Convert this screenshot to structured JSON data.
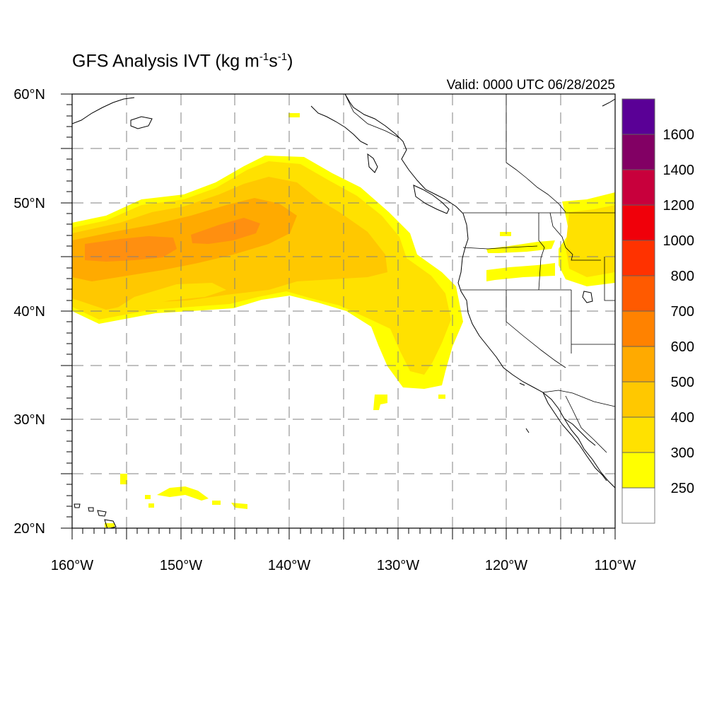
{
  "map": {
    "title_main": "GFS Analysis IVT (kg m",
    "title_exp1": "-1",
    "title_mid": "s",
    "title_exp2": "-1",
    "title_end": ")",
    "valid": "Valid: 0000 UTC 06/28/2025",
    "lat_labels": [
      {
        "text": "60°N",
        "value": 60
      },
      {
        "text": "50°N",
        "value": 50
      },
      {
        "text": "40°N",
        "value": 40
      },
      {
        "text": "30°N",
        "value": 30
      },
      {
        "text": "20°N",
        "value": 20
      }
    ],
    "lon_labels": [
      {
        "text": "160°W",
        "value": -160
      },
      {
        "text": "150°W",
        "value": -150
      },
      {
        "text": "140°W",
        "value": -140
      },
      {
        "text": "130°W",
        "value": -130
      },
      {
        "text": "120°W",
        "value": -120
      },
      {
        "text": "110°W",
        "value": -110
      }
    ],
    "colorbar": {
      "levels": [
        {
          "label": "250",
          "color": "#ffff00"
        },
        {
          "label": "300",
          "color": "#ffe100"
        },
        {
          "label": "400",
          "color": "#ffc800"
        },
        {
          "label": "500",
          "color": "#ffaa00"
        },
        {
          "label": "600",
          "color": "#ff8200"
        },
        {
          "label": "700",
          "color": "#ff5a00"
        },
        {
          "label": "800",
          "color": "#ff3200"
        },
        {
          "label": "1000",
          "color": "#f0000a"
        },
        {
          "label": "1200",
          "color": "#c8003c"
        },
        {
          "label": "1400",
          "color": "#820064"
        },
        {
          "label": "1600",
          "color": "#5a0096"
        }
      ],
      "below_color": "#ffffff"
    }
  }
}
